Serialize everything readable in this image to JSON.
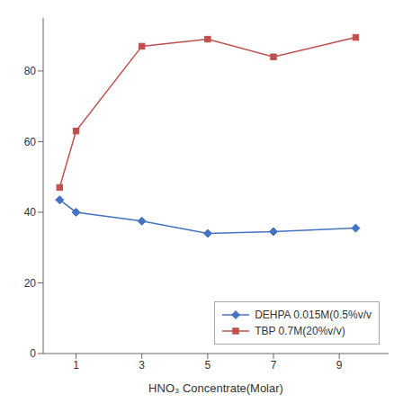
{
  "chart_data": {
    "type": "line",
    "x": [
      0.5,
      1,
      3,
      5,
      7,
      9.5
    ],
    "series": [
      {
        "name": "DEHPA 0.015M(0.5%v/v",
        "color": "#4472C4",
        "marker": "diamond",
        "values": [
          43.5,
          40.0,
          37.5,
          34.0,
          34.5,
          35.5
        ]
      },
      {
        "name": "TBP 0.7M(20%v/v)",
        "color": "#C0504D",
        "marker": "square",
        "values": [
          47.0,
          63.0,
          87.0,
          89.0,
          84.0,
          89.5
        ]
      }
    ],
    "xlabel": "HNO₃ Concentrate(Molar)",
    "xlim": [
      0,
      10.5
    ],
    "xticks": [
      1,
      3,
      5,
      7,
      9
    ],
    "ylim": [
      0,
      95
    ],
    "yticks": [
      0,
      20,
      40,
      60,
      80
    ],
    "grid": false,
    "legend": "lower right"
  }
}
